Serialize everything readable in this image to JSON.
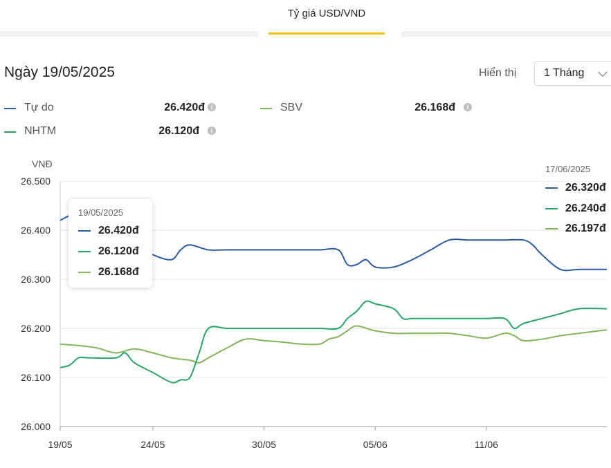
{
  "tab": {
    "label": "Tỷ giá USD/VND"
  },
  "header": {
    "date_title": "Ngày 19/05/2025",
    "display_label": "Hiển thị",
    "period_value": "1 Tháng"
  },
  "legend": [
    {
      "name": "Tự do",
      "value": "26.420đ",
      "color": "#2b5aa0"
    },
    {
      "name": "SBV",
      "value": "26.168đ",
      "color": "#82b45a"
    },
    {
      "name": "NHTM",
      "value": "26.120đ",
      "color": "#27a36a"
    }
  ],
  "tooltip": {
    "date": "19/05/2025",
    "values": [
      "26.420đ",
      "26.120đ",
      "26.168đ"
    ]
  },
  "end_panel": {
    "date": "17/06/2025",
    "values": [
      "26.320đ",
      "26.240đ",
      "26.197đ"
    ]
  },
  "chart_data": {
    "type": "line",
    "ylabel": "VNĐ",
    "ylim": [
      26000,
      26500
    ],
    "y_ticks": [
      "26.000",
      "26.100",
      "26.200",
      "26.300",
      "26.400",
      "26.500"
    ],
    "x_tick_labels": [
      "19/05",
      "24/05",
      "30/05",
      "05/06",
      "11/06"
    ],
    "x_tick_days": [
      0,
      5,
      11,
      17,
      23
    ],
    "x_range_days": [
      0,
      29.5
    ],
    "grid": true,
    "series": [
      {
        "name": "Tự do",
        "color": "#2b5aa0",
        "x": [
          0,
          0.5,
          1,
          4,
          5,
          6,
          6.5,
          7,
          8,
          9,
          10,
          11,
          12,
          13,
          14,
          15,
          15.5,
          16,
          16.5,
          17,
          18,
          19,
          20,
          21,
          22,
          23,
          24,
          25,
          25.5,
          26,
          27,
          28,
          29.5
        ],
        "values": [
          26420,
          26430,
          26440,
          26370,
          26350,
          26340,
          26360,
          26370,
          26360,
          26360,
          26360,
          26360,
          26360,
          26360,
          26360,
          26360,
          26330,
          26330,
          26340,
          26325,
          26325,
          26340,
          26360,
          26380,
          26380,
          26380,
          26380,
          26380,
          26370,
          26350,
          26320,
          26320,
          26320
        ]
      },
      {
        "name": "NHTM",
        "color": "#27a36a",
        "x": [
          0,
          0.5,
          1,
          1.5,
          3,
          3.5,
          4,
          5,
          6,
          6.5,
          7,
          7.5,
          8,
          9,
          10,
          11,
          12,
          13,
          14,
          15,
          15.5,
          16,
          16.5,
          17,
          18,
          18.5,
          19,
          20,
          21,
          22,
          23,
          24,
          24.5,
          25,
          26,
          27,
          28,
          29.5
        ],
        "values": [
          26120,
          26125,
          26140,
          26140,
          26140,
          26150,
          26130,
          26110,
          26090,
          26095,
          26100,
          26150,
          26200,
          26200,
          26200,
          26200,
          26200,
          26200,
          26200,
          26200,
          26220,
          26235,
          26255,
          26250,
          26240,
          26220,
          26220,
          26220,
          26220,
          26220,
          26220,
          26220,
          26200,
          26210,
          26220,
          26230,
          26240,
          26240
        ]
      },
      {
        "name": "SBV",
        "color": "#82b45a",
        "x": [
          0,
          1,
          2,
          3,
          4,
          5,
          6,
          7,
          7.5,
          8,
          9,
          10,
          11,
          12,
          13,
          14,
          14.5,
          15,
          15.5,
          16,
          17,
          18,
          19,
          20,
          21,
          22,
          23,
          24,
          24.5,
          25,
          26,
          27,
          28,
          29.5
        ],
        "values": [
          26168,
          26165,
          26160,
          26150,
          26158,
          26150,
          26140,
          26135,
          26130,
          26140,
          26160,
          26178,
          26175,
          26172,
          26168,
          26168,
          26178,
          26183,
          26195,
          26205,
          26195,
          26190,
          26190,
          26190,
          26190,
          26185,
          26180,
          26190,
          26185,
          26175,
          26178,
          26185,
          26190,
          26197
        ]
      }
    ]
  }
}
